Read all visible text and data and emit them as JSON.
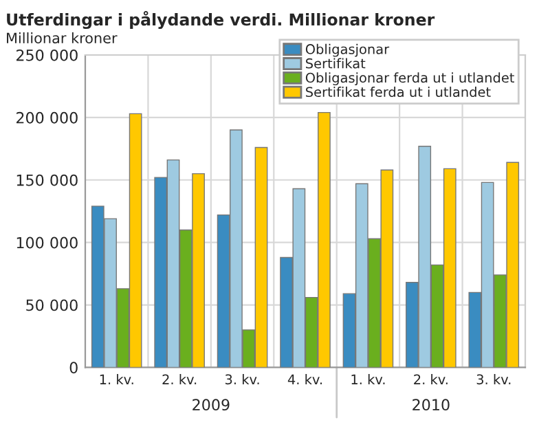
{
  "chart_data": {
    "type": "bar",
    "title": "Utferdingar i pålydande verdi. Millionar kroner",
    "ylabel": "Millionar kroner",
    "categories": [
      "1. kv.",
      "2. kv.",
      "3. kv.",
      "4. kv.",
      "1. kv.",
      "2. kv.",
      "3. kv."
    ],
    "series": [
      {
        "name": "Obligasjonar",
        "color": "#3a8cc1",
        "values": [
          129000,
          152000,
          122000,
          88000,
          59000,
          68000,
          60000
        ]
      },
      {
        "name": "Sertifikat",
        "color": "#9ecae1",
        "values": [
          119000,
          166000,
          190000,
          143000,
          147000,
          177000,
          148000
        ]
      },
      {
        "name": "Obligasjonar ferda ut i utlandet",
        "color": "#6aaf1e",
        "values": [
          63000,
          110000,
          30000,
          56000,
          103000,
          82000,
          74000
        ]
      },
      {
        "name": "Sertifikat ferda ut i utlandet",
        "color": "#ffc800",
        "values": [
          203000,
          155000,
          176000,
          204000,
          158000,
          159000,
          164000
        ]
      }
    ],
    "ylim": [
      0,
      250000
    ],
    "yticks": [
      {
        "value": 0,
        "label": "0"
      },
      {
        "value": 50000,
        "label": "50 000"
      },
      {
        "value": 100000,
        "label": "100 000"
      },
      {
        "value": 150000,
        "label": "150 000"
      },
      {
        "value": 200000,
        "label": "200 000"
      },
      {
        "value": 250000,
        "label": "250 000"
      }
    ],
    "annotations": [
      "2009",
      "2010"
    ],
    "grid": true,
    "legend": "top right"
  }
}
